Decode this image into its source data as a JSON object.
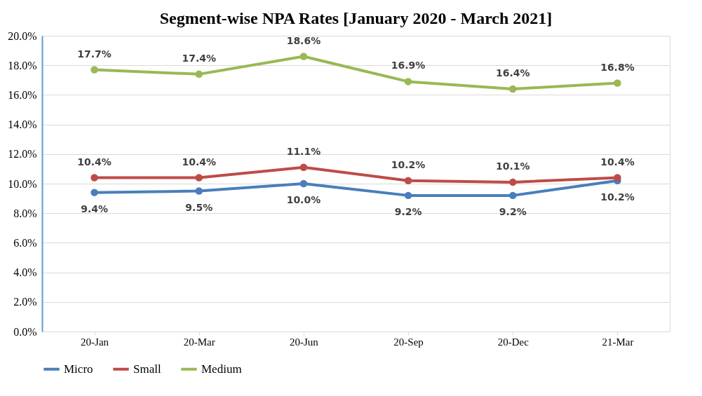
{
  "chart_data": {
    "type": "line",
    "title": "Segment-wise NPA Rates [January 2020 - March 2021]",
    "categories": [
      "20-Jan",
      "20-Mar",
      "20-Jun",
      "20-Sep",
      "20-Dec",
      "21-Mar"
    ],
    "series": [
      {
        "name": "Micro",
        "color": "#4a7ebb",
        "values": [
          9.4,
          9.5,
          10.0,
          9.2,
          9.2,
          10.2
        ],
        "value_labels": [
          "9.4%",
          "9.5%",
          "10.0%",
          "9.2%",
          "9.2%",
          "10.2%"
        ]
      },
      {
        "name": "Small",
        "color": "#be4b48",
        "values": [
          10.4,
          10.4,
          11.1,
          10.2,
          10.1,
          10.4
        ],
        "value_labels": [
          "10.4%",
          "10.4%",
          "11.1%",
          "10.2%",
          "10.1%",
          "10.4%"
        ]
      },
      {
        "name": "Medium",
        "color": "#98b954",
        "values": [
          17.7,
          17.4,
          18.6,
          16.9,
          16.4,
          16.8
        ],
        "value_labels": [
          "17.7%",
          "17.4%",
          "18.6%",
          "16.9%",
          "16.4%",
          "16.8%"
        ]
      }
    ],
    "ylim": [
      0,
      20
    ],
    "yticks": [
      {
        "value": 0,
        "label": "0.0%"
      },
      {
        "value": 2,
        "label": "2.0%"
      },
      {
        "value": 4,
        "label": "4.0%"
      },
      {
        "value": 6,
        "label": "6.0%"
      },
      {
        "value": 8,
        "label": "8.0%"
      },
      {
        "value": 10,
        "label": "10.0%"
      },
      {
        "value": 12,
        "label": "12.0%"
      },
      {
        "value": 14,
        "label": "14.0%"
      },
      {
        "value": 16,
        "label": "16.0%"
      },
      {
        "value": 18,
        "label": "18.0%"
      },
      {
        "value": 20,
        "label": "20.0%"
      }
    ],
    "grid": "y",
    "legend": "bottom",
    "marker": "circle",
    "line_style": "solid"
  }
}
